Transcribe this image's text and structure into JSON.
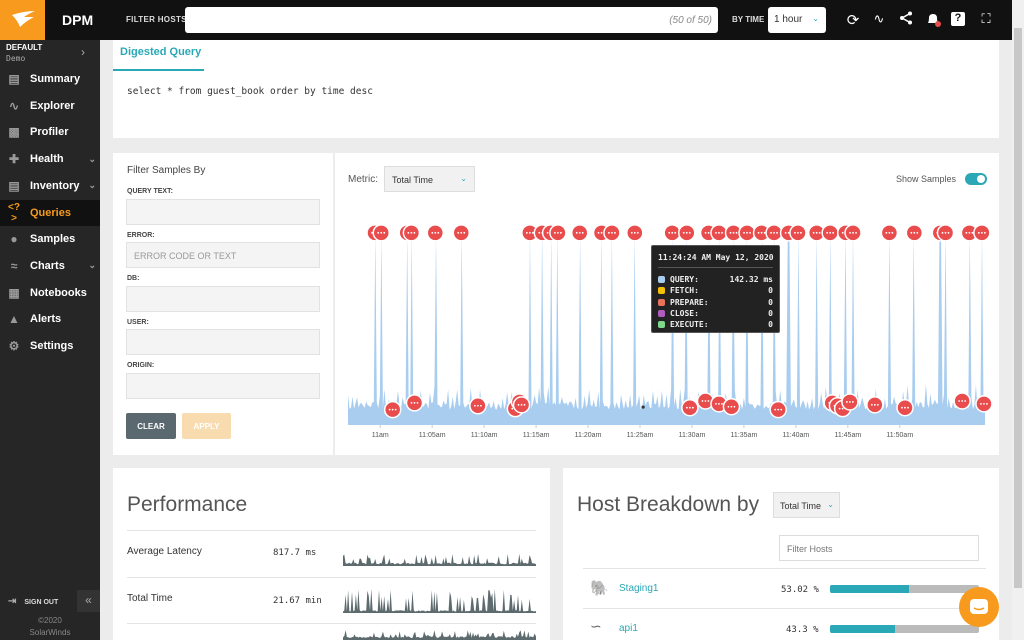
{
  "topbar": {
    "app": "DPM",
    "filter_hosts_label": "FILTER HOSTS",
    "filter_hosts_count": "(50 of 50)",
    "by_time_label": "BY TIME",
    "time_value": "1 hour"
  },
  "sidebar": {
    "org": "DEFAULT",
    "org_sub": "Demo",
    "items": [
      {
        "label": "Summary",
        "icon": "summary-icon"
      },
      {
        "label": "Explorer",
        "icon": "explorer-icon"
      },
      {
        "label": "Profiler",
        "icon": "profiler-icon"
      },
      {
        "label": "Health",
        "icon": "health-icon"
      },
      {
        "label": "Inventory",
        "icon": "inventory-icon"
      },
      {
        "label": "Queries",
        "icon": "queries-icon"
      },
      {
        "label": "Samples",
        "icon": "samples-icon"
      },
      {
        "label": "Charts",
        "icon": "charts-icon"
      },
      {
        "label": "Notebooks",
        "icon": "notebooks-icon"
      },
      {
        "label": "Alerts",
        "icon": "alerts-icon"
      },
      {
        "label": "Settings",
        "icon": "settings-icon"
      }
    ],
    "sign_out": "SIGN OUT",
    "copyright": "©2020",
    "company": "SolarWinds"
  },
  "query": {
    "tab": "Digested Query",
    "text": "select * from guest_book order by time desc"
  },
  "filters": {
    "title": "Filter Samples By",
    "query_text_label": "QUERY TEXT:",
    "error_label": "ERROR:",
    "error_placeholder": "ERROR CODE OR TEXT",
    "db_label": "DB:",
    "user_label": "USER:",
    "origin_label": "ORIGIN:",
    "clear": "CLEAR",
    "apply": "APPLY"
  },
  "samples": {
    "metric_label": "Metric:",
    "metric_value": "Total Time",
    "show_samples": "Show Samples",
    "show_samples_on": true
  },
  "tooltip": {
    "time": "11:24:24 AM May 12, 2020",
    "rows": [
      {
        "label": "QUERY:",
        "value": "142.32 ms",
        "color": "#a8cdef"
      },
      {
        "label": "FETCH:",
        "value": "0",
        "color": "#f5c000"
      },
      {
        "label": "PREPARE:",
        "value": "0",
        "color": "#e8735a"
      },
      {
        "label": "CLOSE:",
        "value": "0",
        "color": "#b05cc0"
      },
      {
        "label": "EXECUTE:",
        "value": "0",
        "color": "#7fd88a"
      }
    ]
  },
  "chart_data": {
    "type": "area",
    "x_unit": "minutes after 11:00",
    "xlim": [
      -3.1,
      58.2
    ],
    "ylim": [
      0,
      1600
    ],
    "x_ticks": [
      {
        "m": 0,
        "label": "11am"
      },
      {
        "m": 5,
        "label": "11:05am"
      },
      {
        "m": 10,
        "label": "11:10am"
      },
      {
        "m": 15,
        "label": "11:15am"
      },
      {
        "m": 20,
        "label": "11:20am"
      },
      {
        "m": 25,
        "label": "11:25am"
      },
      {
        "m": 30,
        "label": "11:30am"
      },
      {
        "m": 35,
        "label": "11:35am"
      },
      {
        "m": 40,
        "label": "11:40am"
      },
      {
        "m": 45,
        "label": "11:45am"
      },
      {
        "m": 50,
        "label": "11:50am"
      }
    ],
    "high_samples": [
      -0.5,
      0.1,
      2.6,
      3.0,
      5.3,
      7.8,
      14.4,
      15.6,
      16.4,
      17.1,
      19.2,
      21.3,
      22.3,
      24.5,
      28.1,
      29.5,
      31.6,
      32.6,
      34.0,
      35.3,
      36.7,
      37.9,
      39.3,
      40.2,
      42.0,
      43.3,
      44.8,
      45.5,
      49.0,
      51.4,
      53.9,
      54.4,
      56.7,
      57.9
    ],
    "high_value": 1500,
    "low_samples": [
      1.2,
      3.3,
      9.4,
      13.0,
      13.4,
      13.6,
      29.8,
      31.3,
      32.6,
      33.8,
      38.3,
      43.5,
      44.0,
      44.5,
      45.2,
      47.6,
      50.5,
      56.0,
      58.1
    ],
    "low_value": 150,
    "baseline": 120,
    "series_color": "#a8cdef",
    "marker_color": "#e84c4c"
  },
  "performance": {
    "title": "Performance",
    "rows": [
      {
        "label": "Average Latency",
        "value": "817.7 ms"
      },
      {
        "label": "Total Time",
        "value": "21.67 min"
      }
    ]
  },
  "hosts": {
    "title": "Host Breakdown by",
    "metric": "Total Time",
    "filter_placeholder": "Filter Hosts",
    "rows": [
      {
        "name": "Staging1",
        "pct_label": "53.02 %",
        "pct": 53.02,
        "icon": "postgres-icon"
      },
      {
        "name": "api1",
        "pct_label": "43.3 %",
        "pct": 43.3,
        "icon": "mysql-icon"
      }
    ]
  }
}
